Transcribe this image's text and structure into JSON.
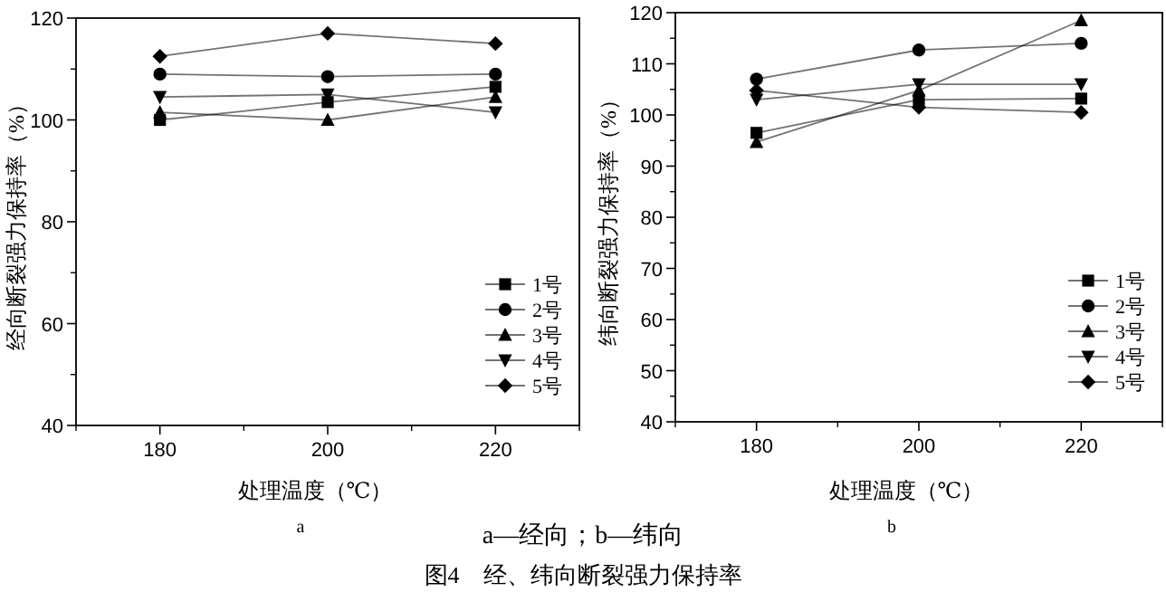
{
  "chart_data": [
    {
      "type": "line",
      "title": "a",
      "xlabel": "处理温度（℃）",
      "ylabel": "经向断裂强力保持率（%）",
      "x": [
        180,
        200,
        220
      ],
      "xlim": [
        170,
        230
      ],
      "xticks": [
        180,
        200,
        220
      ],
      "ylim": [
        40,
        120
      ],
      "yticks": [
        40,
        60,
        80,
        100,
        120
      ],
      "legend": "bottom right",
      "grid": false,
      "line_style": "solid",
      "series": [
        {
          "name": "1号",
          "color": "#000000",
          "marker": "square",
          "values": [
            100,
            103.5,
            106.5
          ]
        },
        {
          "name": "2号",
          "color": "#000000",
          "marker": "circle",
          "values": [
            109,
            108.5,
            109
          ]
        },
        {
          "name": "3号",
          "color": "#000000",
          "marker": "triangle",
          "values": [
            101.5,
            100,
            104.5
          ]
        },
        {
          "name": "4号",
          "color": "#000000",
          "marker": "triangle-down",
          "values": [
            104.5,
            105,
            101.5
          ]
        },
        {
          "name": "5号",
          "color": "#000000",
          "marker": "diamond",
          "values": [
            112.5,
            117,
            115
          ]
        }
      ],
      "annotations": [
        "a—经向；b—纬向",
        "图4　经、纬向断裂强力保持率"
      ]
    },
    {
      "type": "line",
      "title": "b",
      "xlabel": "处理温度（℃）",
      "ylabel": "纬向断裂强力保持率（%）",
      "x": [
        180,
        200,
        220
      ],
      "xlim": [
        170,
        230
      ],
      "xticks": [
        180,
        200,
        220
      ],
      "ylim": [
        40,
        120
      ],
      "yticks": [
        40,
        50,
        60,
        70,
        80,
        90,
        100,
        110,
        120
      ],
      "legend": "bottom right",
      "grid": false,
      "line_style": "solid",
      "series": [
        {
          "name": "1号",
          "color": "#000000",
          "marker": "square",
          "values": [
            96.5,
            103,
            103.2
          ]
        },
        {
          "name": "2号",
          "color": "#000000",
          "marker": "circle",
          "values": [
            107,
            112.7,
            114
          ]
        },
        {
          "name": "3号",
          "color": "#000000",
          "marker": "triangle",
          "values": [
            94.7,
            104.8,
            118.5
          ]
        },
        {
          "name": "4号",
          "color": "#000000",
          "marker": "triangle-down",
          "values": [
            103,
            106,
            106
          ]
        },
        {
          "name": "5号",
          "color": "#000000",
          "marker": "diamond",
          "values": [
            104.8,
            101.5,
            100.5
          ]
        }
      ]
    }
  ]
}
